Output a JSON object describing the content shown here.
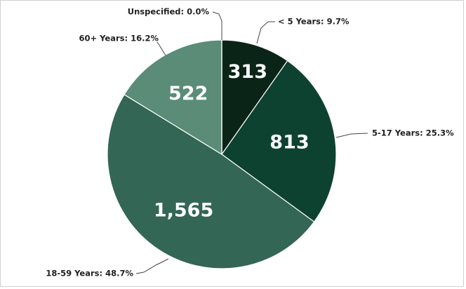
{
  "chart_data": {
    "type": "pie",
    "categories": [
      "< 5 Years: 9.7%",
      "5-17 Years: 25.3%",
      "18-59 Years: 48.7%",
      "60+ Years: 16.2%",
      "Unspecified: 0.0%"
    ],
    "values": [
      313,
      813,
      1565,
      522,
      0
    ],
    "value_labels": [
      "313",
      "813",
      "1,565",
      "522",
      null
    ],
    "colors": [
      "#0b2418",
      "#0e4230",
      "#336654",
      "#5a8c78",
      "#8fb3a4"
    ]
  }
}
